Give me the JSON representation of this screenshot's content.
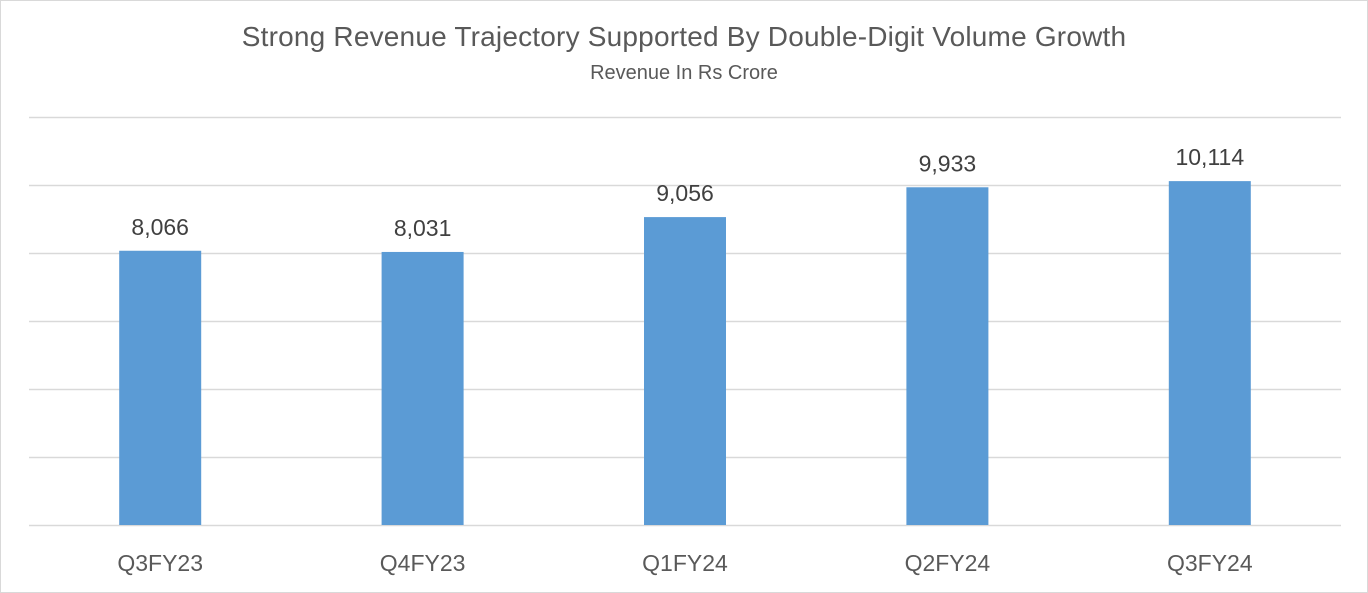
{
  "chart_data": {
    "type": "bar",
    "title": "Strong Revenue Trajectory Supported By Double-Digit Volume Growth",
    "subtitle": "Revenue In Rs Crore",
    "categories": [
      "Q3FY23",
      "Q4FY23",
      "Q1FY24",
      "Q2FY24",
      "Q3FY24"
    ],
    "values": [
      8066,
      8031,
      9056,
      9933,
      10114
    ],
    "value_labels": [
      "8,066",
      "8,031",
      "9,056",
      "9,933",
      "10,114"
    ],
    "ylim": [
      0,
      12000
    ],
    "gridline_step": 2000,
    "grid": true,
    "legend": "none",
    "colors": {
      "bar": "#5b9bd5"
    }
  }
}
